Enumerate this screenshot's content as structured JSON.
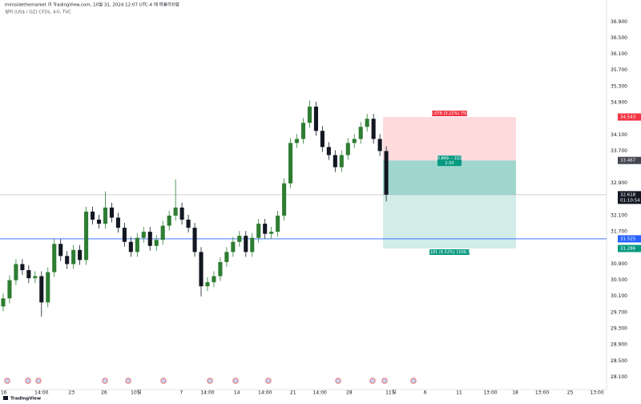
{
  "chart_data": {
    "type": "candlestick",
    "header": "Iminsidethemarket 이 TradingView.com, 10월 31, 2024 12:07 UTC-4 에 퍼블리쉬함",
    "symbol": "실버 (US$ / OZ) CFDs, 4시, TVC",
    "brand": "TradingView",
    "up_color": "#2e7d32",
    "down_color": "#131722",
    "open": [
      29.85,
      30.05,
      30.5,
      30.9,
      30.75,
      30.55,
      30.6,
      29.95,
      30.7,
      31.4,
      31.1,
      30.9,
      31.25,
      31.0,
      32.2,
      32.0,
      31.9,
      32.3,
      32.05,
      31.8,
      31.45,
      31.2,
      31.55,
      31.7,
      31.35,
      31.5,
      31.85,
      32.1,
      32.3,
      32.0,
      31.8,
      31.2,
      30.35,
      30.45,
      30.6,
      30.95,
      31.2,
      31.45,
      31.6,
      31.2,
      31.55,
      31.9,
      31.65,
      31.7,
      32.1,
      32.9,
      33.9,
      34.0,
      34.4,
      34.8,
      34.2,
      33.8,
      33.6,
      33.3,
      33.6,
      33.9,
      34.0,
      34.3,
      34.5,
      34.0,
      33.7
    ],
    "high": [
      30.17,
      30.62,
      31.02,
      31.02,
      30.87,
      30.72,
      30.72,
      30.82,
      31.52,
      31.52,
      31.22,
      31.37,
      31.37,
      32.32,
      32.32,
      32.12,
      32.7,
      32.42,
      32.17,
      31.92,
      31.57,
      31.67,
      31.82,
      31.82,
      31.62,
      31.97,
      32.22,
      33.0,
      32.42,
      32.12,
      31.92,
      31.32,
      30.57,
      30.72,
      31.07,
      31.32,
      31.57,
      31.72,
      31.72,
      31.67,
      32.02,
      32.02,
      31.82,
      32.22,
      33.02,
      34.02,
      34.12,
      34.52,
      34.95,
      34.92,
      34.32,
      33.92,
      33.72,
      33.72,
      34.02,
      34.12,
      34.42,
      34.62,
      34.62,
      34.12,
      33.82
    ],
    "low": [
      29.73,
      29.93,
      30.38,
      30.63,
      30.43,
      30.43,
      29.6,
      29.83,
      30.58,
      30.98,
      30.78,
      30.78,
      30.88,
      30.88,
      31.88,
      31.78,
      31.78,
      31.93,
      31.68,
      31.33,
      31.08,
      31.08,
      31.43,
      31.23,
      31.23,
      31.38,
      31.73,
      31.98,
      31.88,
      31.68,
      31.08,
      30.1,
      30.23,
      30.33,
      30.48,
      30.83,
      31.08,
      31.33,
      31.08,
      31.08,
      31.43,
      31.53,
      31.53,
      31.58,
      31.98,
      32.78,
      33.78,
      33.88,
      34.28,
      34.08,
      33.68,
      33.48,
      33.18,
      33.18,
      33.48,
      33.78,
      33.88,
      34.18,
      33.88,
      33.58,
      32.45
    ],
    "close": [
      30.05,
      30.5,
      30.9,
      30.75,
      30.55,
      30.6,
      29.95,
      30.7,
      31.4,
      31.1,
      30.9,
      31.25,
      31.0,
      32.2,
      32.0,
      31.9,
      32.3,
      32.05,
      31.8,
      31.45,
      31.2,
      31.55,
      31.7,
      31.35,
      31.5,
      31.85,
      32.1,
      32.3,
      32.0,
      31.8,
      31.2,
      30.35,
      30.45,
      30.6,
      30.95,
      31.2,
      31.45,
      31.6,
      31.2,
      31.55,
      31.9,
      31.65,
      31.7,
      32.1,
      32.9,
      33.9,
      34.0,
      34.4,
      34.8,
      34.2,
      33.8,
      33.6,
      33.3,
      33.6,
      33.9,
      34.0,
      34.3,
      34.5,
      34.0,
      33.7,
      32.618
    ],
    "xlim": [
      -0.5,
      94.5
    ],
    "xticks": [
      {
        "value": 0.1,
        "label": "16"
      },
      {
        "value": 6.0,
        "label": "14:00"
      },
      {
        "value": 10.7,
        "label": "23"
      },
      {
        "value": 15.8,
        "label": "26"
      },
      {
        "value": 20.8,
        "label": "10월"
      },
      {
        "value": 27.9,
        "label": "7"
      },
      {
        "value": 32.0,
        "label": "14:00"
      },
      {
        "value": 36.6,
        "label": "14"
      },
      {
        "value": 41.0,
        "label": "14:00"
      },
      {
        "value": 45.4,
        "label": "21"
      },
      {
        "value": 49.6,
        "label": "14:00"
      },
      {
        "value": 54.2,
        "label": "28"
      },
      {
        "value": 60.7,
        "label": "11월"
      },
      {
        "value": 66.1,
        "label": "6"
      },
      {
        "value": 71.4,
        "label": "11"
      },
      {
        "value": 76.3,
        "label": "13:00"
      },
      {
        "value": 80.2,
        "label": "18"
      },
      {
        "value": 84.4,
        "label": "13:00"
      },
      {
        "value": 88.8,
        "label": "25"
      },
      {
        "value": 93.0,
        "label": "13:00"
      }
    ],
    "ylim": [
      27.87,
      37.085
    ],
    "yticks": [
      {
        "value": 28.1,
        "label": "28.100"
      },
      {
        "value": 28.5,
        "label": "28.500"
      },
      {
        "value": 28.9,
        "label": "28.900"
      },
      {
        "value": 29.3,
        "label": "29.300"
      },
      {
        "value": 29.7,
        "label": "29.700"
      },
      {
        "value": 30.1,
        "label": "30.100"
      },
      {
        "value": 30.5,
        "label": "30.500"
      },
      {
        "value": 30.9,
        "label": "30.900"
      },
      {
        "value": 31.7,
        "label": "31.700"
      },
      {
        "value": 32.1,
        "label": "32.100"
      },
      {
        "value": 32.9,
        "label": "32.900"
      },
      {
        "value": 33.7,
        "label": "33.700"
      },
      {
        "value": 34.1,
        "label": "34.100"
      },
      {
        "value": 34.9,
        "label": "34.900"
      },
      {
        "value": 35.3,
        "label": "35.300"
      },
      {
        "value": 35.7,
        "label": "35.700"
      },
      {
        "value": 36.1,
        "label": "36.100"
      },
      {
        "value": 36.5,
        "label": "36.500"
      },
      {
        "value": 36.9,
        "label": "36.900"
      }
    ],
    "grid": false,
    "current_price": 32.618,
    "countdown": "01:10:54",
    "hline": {
      "value": 31.525,
      "color": "#2962ff"
    },
    "position": {
      "stop": 34.543,
      "entry": 33.467,
      "target": 31.286,
      "stop_label": "1.076 (3.22%) 750",
      "entry_label": "0.849 -- 222",
      "ratio_label": "2.03",
      "target_label": "2.181 (6.52%) 1506.74"
    }
  }
}
